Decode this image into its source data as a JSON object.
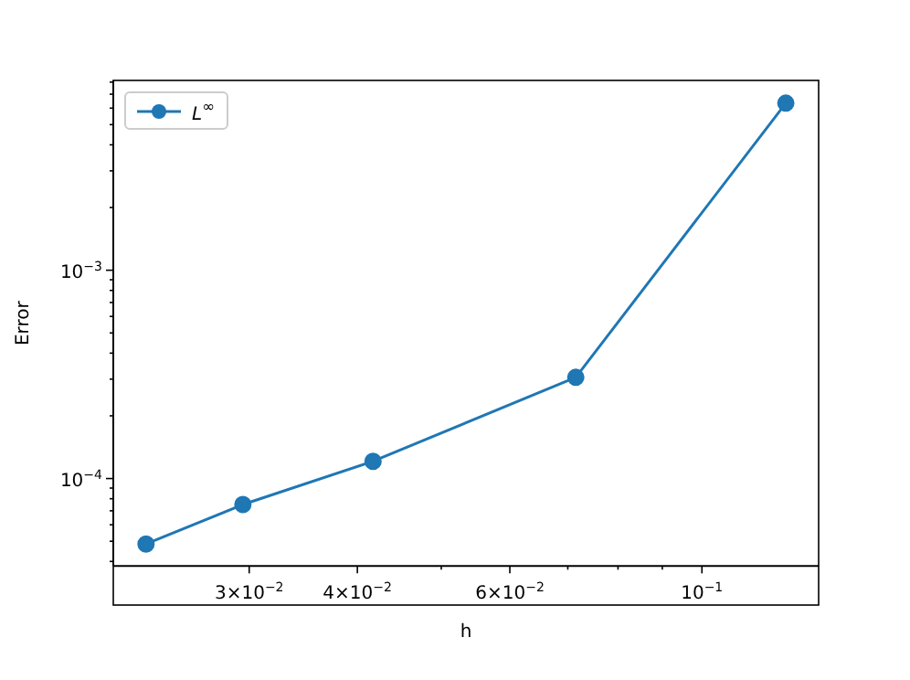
{
  "chart_data": {
    "type": "line",
    "xlabel": "h",
    "ylabel": "Error",
    "log": "xy",
    "marker": "circle",
    "line_style": "solid",
    "grid": false,
    "legend": "top left",
    "x": [
      0.0228,
      0.0295,
      0.0417,
      0.0715,
      0.125
    ],
    "series": [
      {
        "name": "L$^{∞}$",
        "color": "#1f77b4",
        "values": [
          4.85e-05,
          7.5e-05,
          0.000121,
          0.000306,
          0.00634
        ]
      }
    ],
    "xlim": [
      0.0209,
      0.1364
    ],
    "xticks": [
      {
        "value": 0.03,
        "label": "3×10$^{−2}$"
      },
      {
        "value": 0.04,
        "label": "4×10$^{−2}$"
      },
      {
        "value": 0.05,
        "label": null
      },
      {
        "value": 0.06,
        "label": "6×10$^{−2}$"
      },
      {
        "value": 0.07,
        "label": null
      },
      {
        "value": 0.08,
        "label": null
      },
      {
        "value": 0.09,
        "label": null
      },
      {
        "value": 0.1,
        "label": "10$^{−1}$"
      }
    ],
    "ylim": [
      3.8e-05,
      0.00815
    ],
    "yticks": [
      {
        "value": 4e-05,
        "label": null
      },
      {
        "value": 5e-05,
        "label": null
      },
      {
        "value": 6e-05,
        "label": null
      },
      {
        "value": 7e-05,
        "label": null
      },
      {
        "value": 8e-05,
        "label": null
      },
      {
        "value": 9e-05,
        "label": null
      },
      {
        "value": 0.0001,
        "label": "10$^{−4}$"
      },
      {
        "value": 0.0002,
        "label": null
      },
      {
        "value": 0.0003,
        "label": null
      },
      {
        "value": 0.0004,
        "label": null
      },
      {
        "value": 0.0005,
        "label": null
      },
      {
        "value": 0.0006,
        "label": null
      },
      {
        "value": 0.0007,
        "label": null
      },
      {
        "value": 0.0008,
        "label": null
      },
      {
        "value": 0.0009,
        "label": null
      },
      {
        "value": 0.001,
        "label": "10$^{−3}$"
      },
      {
        "value": 0.002,
        "label": null
      },
      {
        "value": 0.003,
        "label": null
      },
      {
        "value": 0.004,
        "label": null
      },
      {
        "value": 0.005,
        "label": null
      },
      {
        "value": 0.006,
        "label": null
      },
      {
        "value": 0.007,
        "label": null
      },
      {
        "value": 0.008,
        "label": null
      }
    ]
  }
}
